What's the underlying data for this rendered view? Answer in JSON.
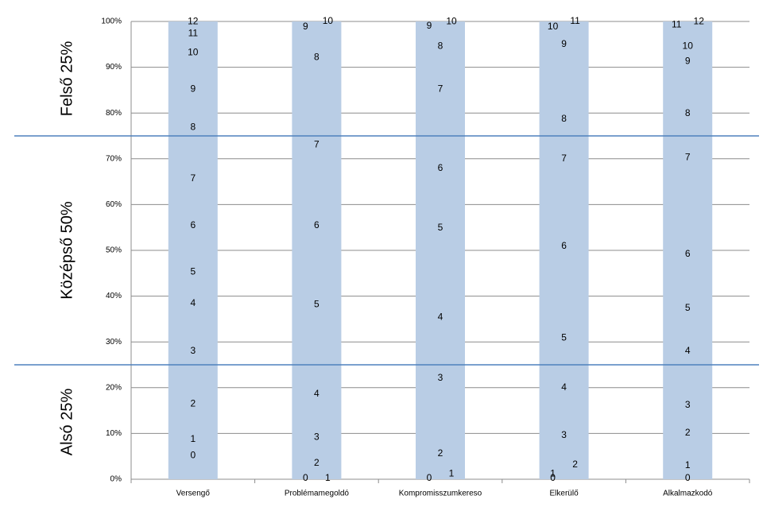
{
  "chart_data": {
    "type": "bar",
    "categories": [
      "Versengő",
      "Problémamegoldó",
      "Kompromisszumkereso",
      "Elkerülő",
      "Alkalmazkodó"
    ],
    "values": [
      100,
      100,
      100,
      100,
      100
    ],
    "color": "#b9cde5",
    "ylim": [
      0,
      100
    ],
    "yticks": [
      {
        "value": 0,
        "label": "0%"
      },
      {
        "value": 10,
        "label": "10%"
      },
      {
        "value": 20,
        "label": "20%"
      },
      {
        "value": 30,
        "label": "30%"
      },
      {
        "value": 40,
        "label": "40%"
      },
      {
        "value": 50,
        "label": "50%"
      },
      {
        "value": 60,
        "label": "60%"
      },
      {
        "value": 70,
        "label": "70%"
      },
      {
        "value": 80,
        "label": "80%"
      },
      {
        "value": 90,
        "label": "90%"
      },
      {
        "value": 100,
        "label": "100%"
      }
    ],
    "grid": true,
    "bands": [
      {
        "label": "Felső 25%",
        "from": 75,
        "to": 100
      },
      {
        "label": "Középső 50%",
        "from": 25,
        "to": 75
      },
      {
        "label": "Alsó 25%",
        "from": 0,
        "to": 25
      }
    ],
    "band_line_color": "#4f81bd",
    "score_labels": [
      [
        {
          "score": 0,
          "percentile": 5
        },
        {
          "score": 1,
          "percentile": 8.5
        },
        {
          "score": 2,
          "percentile": 16.3
        },
        {
          "score": 3,
          "percentile": 27.8
        },
        {
          "score": 4,
          "percentile": 38.2
        },
        {
          "score": 5,
          "percentile": 45.1
        },
        {
          "score": 6,
          "percentile": 55.2
        },
        {
          "score": 7,
          "percentile": 65.5
        },
        {
          "score": 8,
          "percentile": 76.7
        },
        {
          "score": 9,
          "percentile": 85
        },
        {
          "score": 10,
          "percentile": 93
        },
        {
          "score": 11,
          "percentile": 97.2
        },
        {
          "score": 12,
          "percentile": 99.8
        }
      ],
      [
        {
          "score": 0,
          "percentile": 0
        },
        {
          "score": 1,
          "percentile": 0
        },
        {
          "score": 2,
          "percentile": 3.3
        },
        {
          "score": 3,
          "percentile": 9
        },
        {
          "score": 4,
          "percentile": 18.4
        },
        {
          "score": 5,
          "percentile": 38
        },
        {
          "score": 6,
          "percentile": 55.2
        },
        {
          "score": 7,
          "percentile": 72.9
        },
        {
          "score": 8,
          "percentile": 92
        },
        {
          "score": 9,
          "percentile": 98.6
        },
        {
          "score": 10,
          "percentile": 100
        }
      ],
      [
        {
          "score": 0,
          "percentile": 0
        },
        {
          "score": 1,
          "percentile": 1
        },
        {
          "score": 2,
          "percentile": 5.4
        },
        {
          "score": 3,
          "percentile": 21.9
        },
        {
          "score": 4,
          "percentile": 35.2
        },
        {
          "score": 5,
          "percentile": 54.7
        },
        {
          "score": 6,
          "percentile": 67.7
        },
        {
          "score": 7,
          "percentile": 85
        },
        {
          "score": 8,
          "percentile": 94.4
        },
        {
          "score": 9,
          "percentile": 98.8
        },
        {
          "score": 10,
          "percentile": 99.8
        }
      ],
      [
        {
          "score": 0,
          "percentile": 0
        },
        {
          "score": 1,
          "percentile": 1
        },
        {
          "score": 2,
          "percentile": 3
        },
        {
          "score": 3,
          "percentile": 9.4
        },
        {
          "score": 4,
          "percentile": 19.8
        },
        {
          "score": 5,
          "percentile": 30.7
        },
        {
          "score": 6,
          "percentile": 50.7
        },
        {
          "score": 7,
          "percentile": 69.8
        },
        {
          "score": 8,
          "percentile": 78.5
        },
        {
          "score": 9,
          "percentile": 94.8
        },
        {
          "score": 10,
          "percentile": 98.6
        },
        {
          "score": 11,
          "percentile": 100
        }
      ],
      [
        {
          "score": 0,
          "percentile": 0
        },
        {
          "score": 1,
          "percentile": 2.8
        },
        {
          "score": 2,
          "percentile": 9.9
        },
        {
          "score": 3,
          "percentile": 16
        },
        {
          "score": 4,
          "percentile": 27.8
        },
        {
          "score": 5,
          "percentile": 37.2
        },
        {
          "score": 6,
          "percentile": 49
        },
        {
          "score": 7,
          "percentile": 70.1
        },
        {
          "score": 8,
          "percentile": 79.7
        },
        {
          "score": 9,
          "percentile": 91.1
        },
        {
          "score": 10,
          "percentile": 94.4
        },
        {
          "score": 11,
          "percentile": 99.1
        },
        {
          "score": 12,
          "percentile": 99.8
        }
      ]
    ]
  }
}
